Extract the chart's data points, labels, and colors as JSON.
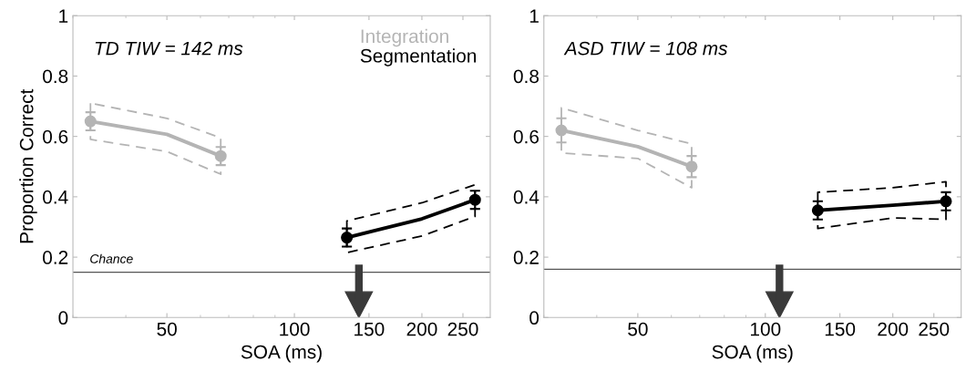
{
  "chart_data": [
    {
      "type": "line",
      "ylabel": "Proportion Correct",
      "xlabel": "SOA (ms)",
      "log": "x",
      "xlim": [
        30,
        290
      ],
      "xticks": [
        50,
        100,
        150,
        200,
        250
      ],
      "ylim": [
        0,
        1
      ],
      "yticks": [
        0,
        0.2,
        0.4,
        0.6,
        0.8,
        1
      ],
      "grid": false,
      "legend": "top right",
      "annotations": [
        "TD TIW = 142 ms"
      ],
      "ref_lines": [
        {
          "axis": "y",
          "value": 0.15,
          "label": "Chance",
          "color": "#555555"
        },
        {
          "axis": "x",
          "value": 142,
          "label": null,
          "color": "#3a3a3a"
        }
      ],
      "series": [
        {
          "type": "line",
          "name": "Integration",
          "color": "#b4b4b4",
          "x": [
            33,
            50,
            67
          ],
          "values": [
            0.65,
            0.607,
            0.535
          ],
          "lower": [
            0.59,
            0.55,
            0.475
          ],
          "upper": [
            0.71,
            0.66,
            0.595
          ]
        },
        {
          "type": "scatter",
          "color": "#b4b4b4",
          "marker": "circle",
          "x": [
            33,
            67
          ],
          "values": [
            0.65,
            0.535
          ],
          "errors": [
            [
              0.62,
              0.68
            ],
            [
              0.505,
              0.565
            ]
          ]
        },
        {
          "type": "line",
          "name": "Segmentation",
          "color": "#000000",
          "x": [
            133,
            200,
            267
          ],
          "values": [
            0.265,
            0.327,
            0.39
          ],
          "lower": [
            0.215,
            0.27,
            0.335
          ],
          "upper": [
            0.32,
            0.38,
            0.44
          ]
        },
        {
          "type": "scatter",
          "color": "#000000",
          "marker": "circle",
          "x": [
            133,
            267
          ],
          "values": [
            0.265,
            0.39
          ],
          "errors": [
            [
              0.235,
              0.295
            ],
            [
              0.36,
              0.42
            ]
          ]
        }
      ]
    },
    {
      "type": "line",
      "xlabel": "SOA (ms)",
      "log": "x",
      "xlim": [
        30,
        290
      ],
      "xticks": [
        50,
        100,
        150,
        200,
        250
      ],
      "ylim": [
        0,
        1
      ],
      "yticks": [
        0,
        0.2,
        0.4,
        0.6,
        0.8,
        1
      ],
      "grid": false,
      "annotations": [
        "ASD TIW = 108 ms"
      ],
      "ref_lines": [
        {
          "axis": "y",
          "value": 0.16,
          "label": null,
          "color": "#555555"
        },
        {
          "axis": "x",
          "value": 108,
          "label": null,
          "color": "#3a3a3a"
        }
      ],
      "series": [
        {
          "type": "line",
          "color": "#b4b4b4",
          "x": [
            33,
            50,
            67
          ],
          "values": [
            0.62,
            0.566,
            0.5
          ],
          "lower": [
            0.545,
            0.527,
            0.43
          ],
          "upper": [
            0.695,
            0.62,
            0.575
          ]
        },
        {
          "type": "scatter",
          "color": "#b4b4b4",
          "marker": "circle",
          "x": [
            33,
            67
          ],
          "values": [
            0.62,
            0.5
          ],
          "errors": [
            [
              0.58,
              0.66
            ],
            [
              0.465,
              0.535
            ]
          ]
        },
        {
          "type": "line",
          "color": "#000000",
          "x": [
            133,
            200,
            267
          ],
          "values": [
            0.355,
            0.372,
            0.385
          ],
          "lower": [
            0.295,
            0.33,
            0.325
          ],
          "upper": [
            0.415,
            0.43,
            0.45
          ]
        },
        {
          "type": "scatter",
          "color": "#000000",
          "marker": "circle",
          "x": [
            133,
            267
          ],
          "values": [
            0.355,
            0.385
          ],
          "errors": [
            [
              0.325,
              0.385
            ],
            [
              0.355,
              0.415
            ]
          ]
        }
      ]
    }
  ]
}
